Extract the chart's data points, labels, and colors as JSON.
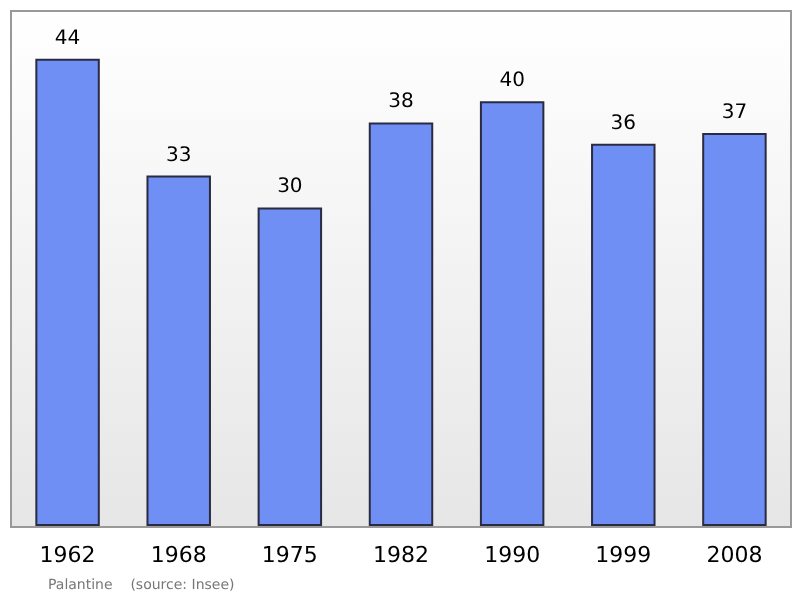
{
  "chart_data": {
    "type": "bar",
    "categories": [
      "1962",
      "1968",
      "1975",
      "1982",
      "1990",
      "1999",
      "2008"
    ],
    "values": [
      44,
      33,
      30,
      38,
      40,
      36,
      37
    ],
    "color": "#6f8ff5",
    "data_labels": true,
    "tick_labels": "x",
    "annotations": [
      "Palantine    (source: Insee)"
    ]
  }
}
